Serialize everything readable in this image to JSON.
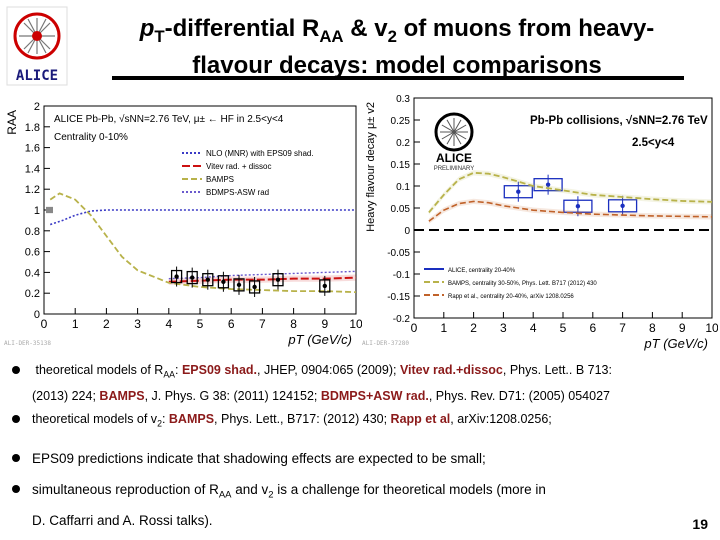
{
  "slide": {
    "title_line1_pre": "p",
    "title_line1_sub": "T",
    "title_line1_mid": "-differential R",
    "title_line1_sub2": "AA",
    "title_line1_amp": " & v",
    "title_line1_sub3": "2",
    "title_line1_post": " of muons from heavy-",
    "title_line2": "flavour decays: model comparisons",
    "logo_text": "ALICE",
    "page_number": "19",
    "ali_left": "ALI-DER-35138",
    "ali_right": "ALI-DER-37280"
  },
  "bullets": [
    {
      "pre": "theoretical models of R",
      "sub": "AA",
      "mid": ": ",
      "eps": "EPS09 shad.",
      "a": ", JHEP, 0904:065 (2009); ",
      "vitev": "Vitev rad.+dissoc",
      "b": ", Phys. Lett..  B 713:"
    },
    {
      "line": "(2013) 224; ",
      "bamps": "BAMPS",
      "c": ", J. Phys. G 38: (2011) 124152; ",
      "bdmps": "BDMPS+ASW rad.",
      "d": ", Phys. Rev.  D71: (2005) 054027"
    },
    {
      "pre": "theoretical models of v",
      "sub": "2",
      "mid": ": ",
      "bamps": "BAMPS",
      "a": ", Phys. Lett., B717: (2012) 430; ",
      "rapp": "Rapp et al",
      "b": ", arXiv:1208.0256;"
    },
    {
      "text": "EPS09 predictions indicate that shadowing effects are expected  to be small;"
    },
    {
      "pre": "simultaneous reproduction of R",
      "sub": "AA",
      "mid": " and v",
      "sub2": "2",
      "post": "  is a challenge for theoretical models (more in"
    },
    {
      "text": "D. Caffarri and A. Rossi talks)."
    }
  ],
  "chart_data": [
    {
      "type": "line",
      "title": "ALICE Pb-Pb, √sNN=2.76 TeV, μ± ← HF in 2.5<y<4",
      "subtitle": "Centrality 0-10%",
      "xlabel": "pT (GeV/c)",
      "ylabel": "RAA",
      "xlim": [
        0,
        10
      ],
      "ylim": [
        0,
        2
      ],
      "xticks": [
        "0",
        "1",
        "2",
        "3",
        "4",
        "5",
        "6",
        "7",
        "8",
        "9",
        "10"
      ],
      "yticks": [
        "0",
        "0.2",
        "0.4",
        "0.6",
        "0.8",
        "1",
        "1.2",
        "1.4",
        "1.6",
        "1.8",
        "2"
      ],
      "legend": [
        "NLO (MNR) with EPS09 shad.",
        "Vitev rad. + dissoc",
        "BAMPS",
        "BDMPS-ASW rad"
      ],
      "legend_colors": [
        "#3b3bc6",
        "#cc1111",
        "#b8b24a",
        "#6a5acd"
      ],
      "series": [
        {
          "name": "NLO (MNR) with EPS09 shad.",
          "x": [
            0.2,
            0.6,
            1.0,
            1.5,
            2,
            3,
            4,
            6,
            8,
            10
          ],
          "y": [
            0.86,
            0.9,
            0.95,
            0.99,
            1.0,
            1.0,
            1.0,
            1.0,
            1.0,
            1.0
          ]
        },
        {
          "name": "Vitev rad. + dissoc",
          "x": [
            4,
            5,
            6,
            7,
            8,
            9,
            10
          ],
          "y": [
            0.31,
            0.32,
            0.33,
            0.33,
            0.34,
            0.34,
            0.35
          ]
        },
        {
          "name": "BAMPS",
          "x": [
            0.2,
            0.5,
            1,
            1.5,
            2,
            2.5,
            3,
            4,
            5,
            6,
            7,
            8,
            9,
            10
          ],
          "y": [
            1.1,
            1.16,
            1.1,
            0.95,
            0.75,
            0.55,
            0.42,
            0.3,
            0.26,
            0.24,
            0.23,
            0.22,
            0.22,
            0.21
          ]
        },
        {
          "name": "BDMPS-ASW rad",
          "x": [
            4,
            5,
            6,
            7,
            8,
            9,
            10
          ],
          "y": [
            0.34,
            0.35,
            0.37,
            0.38,
            0.39,
            0.4,
            0.41
          ]
        },
        {
          "name": "ALICE data",
          "x": [
            4.25,
            4.75,
            5.25,
            5.75,
            6.25,
            6.75,
            7.5,
            9.0
          ],
          "y": [
            0.36,
            0.35,
            0.33,
            0.31,
            0.28,
            0.26,
            0.33,
            0.27
          ]
        }
      ]
    },
    {
      "type": "line",
      "title": "Pb-Pb collisions, √sNN=2.76 TeV",
      "subtitle": "2.5<y<4",
      "logo": "ALICE PRELIMINARY",
      "xlabel": "pT (GeV/c)",
      "ylabel": "Heavy flavour decay μ± v2",
      "xlim": [
        0,
        10
      ],
      "ylim": [
        -0.2,
        0.3
      ],
      "xticks": [
        "0",
        "1",
        "2",
        "3",
        "4",
        "5",
        "6",
        "7",
        "8",
        "9",
        "10"
      ],
      "yticks": [
        "-0.2",
        "-0.15",
        "-0.1",
        "-0.05",
        "0",
        "0.05",
        "0.1",
        "0.15",
        "0.2",
        "0.25",
        "0.3"
      ],
      "legend": [
        "ALICE, centrality 20-40%",
        "BAMPS, centrality 30-50%, Phys. Lett. B717 (2012) 430",
        "Rapp et al., centrality 20-40%, arXiv 1208.0256"
      ],
      "legend_colors": [
        "#1a2fbf",
        "#b8b24a",
        "#c0622a"
      ],
      "series": [
        {
          "name": "ALICE, centrality 20-40%",
          "x": [
            3.5,
            4.5,
            5.5,
            7.0
          ],
          "y": [
            0.087,
            0.103,
            0.054,
            0.055
          ]
        },
        {
          "name": "BAMPS, centrality 30-50%",
          "x": [
            0.5,
            1,
            1.5,
            2,
            2.5,
            3,
            4,
            5,
            6,
            7,
            8,
            9,
            10
          ],
          "y": [
            0.04,
            0.08,
            0.115,
            0.13,
            0.128,
            0.12,
            0.1,
            0.09,
            0.08,
            0.075,
            0.07,
            0.066,
            0.064
          ]
        },
        {
          "name": "Rapp et al., centrality 20-40%",
          "x": [
            0.5,
            1,
            1.5,
            2,
            2.5,
            3,
            4,
            5,
            6,
            7,
            8,
            9,
            10
          ],
          "y": [
            0.02,
            0.045,
            0.06,
            0.065,
            0.062,
            0.055,
            0.045,
            0.04,
            0.036,
            0.034,
            0.032,
            0.031,
            0.03
          ]
        }
      ]
    }
  ]
}
